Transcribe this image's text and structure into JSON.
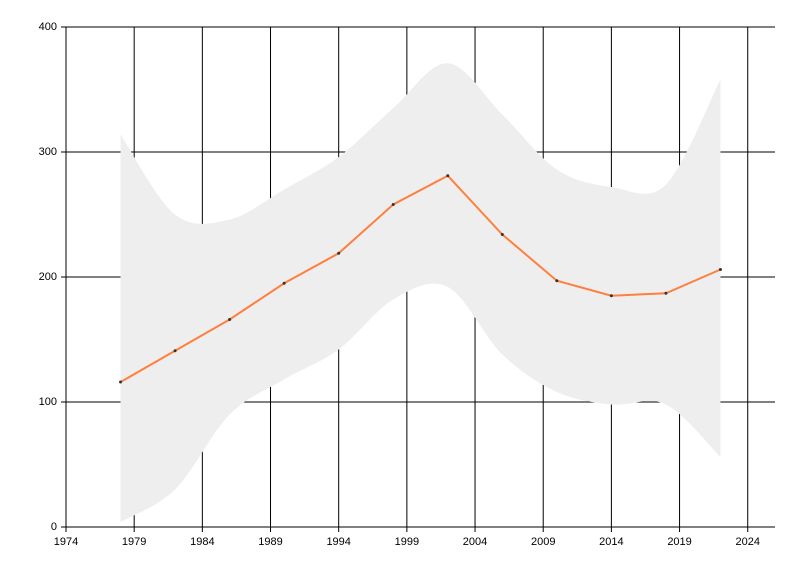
{
  "chart_data": {
    "type": "line-band",
    "x": [
      1978,
      1982,
      1986,
      1990,
      1994,
      1998,
      2002,
      2006,
      2010,
      2014,
      2018,
      2022
    ],
    "values": [
      116,
      141,
      166,
      195,
      219,
      258,
      281,
      234,
      197,
      185,
      187,
      206
    ],
    "band_upper": [
      314,
      250,
      246,
      270,
      296,
      335,
      371,
      330,
      286,
      272,
      274,
      358
    ],
    "band_lower": [
      4,
      30,
      90,
      118,
      142,
      182,
      192,
      138,
      108,
      98,
      98,
      56
    ],
    "color": "#ff7f3f",
    "band_color": "#eeeeee",
    "marker_color": "#333333",
    "xlim": [
      1974,
      2026
    ],
    "xticks": [
      1974,
      1979,
      1984,
      1989,
      1994,
      1999,
      2004,
      2009,
      2014,
      2019,
      2024
    ],
    "ylim": [
      0,
      400
    ],
    "yticks": [
      0,
      100,
      200,
      300,
      400
    ],
    "grid": true
  }
}
